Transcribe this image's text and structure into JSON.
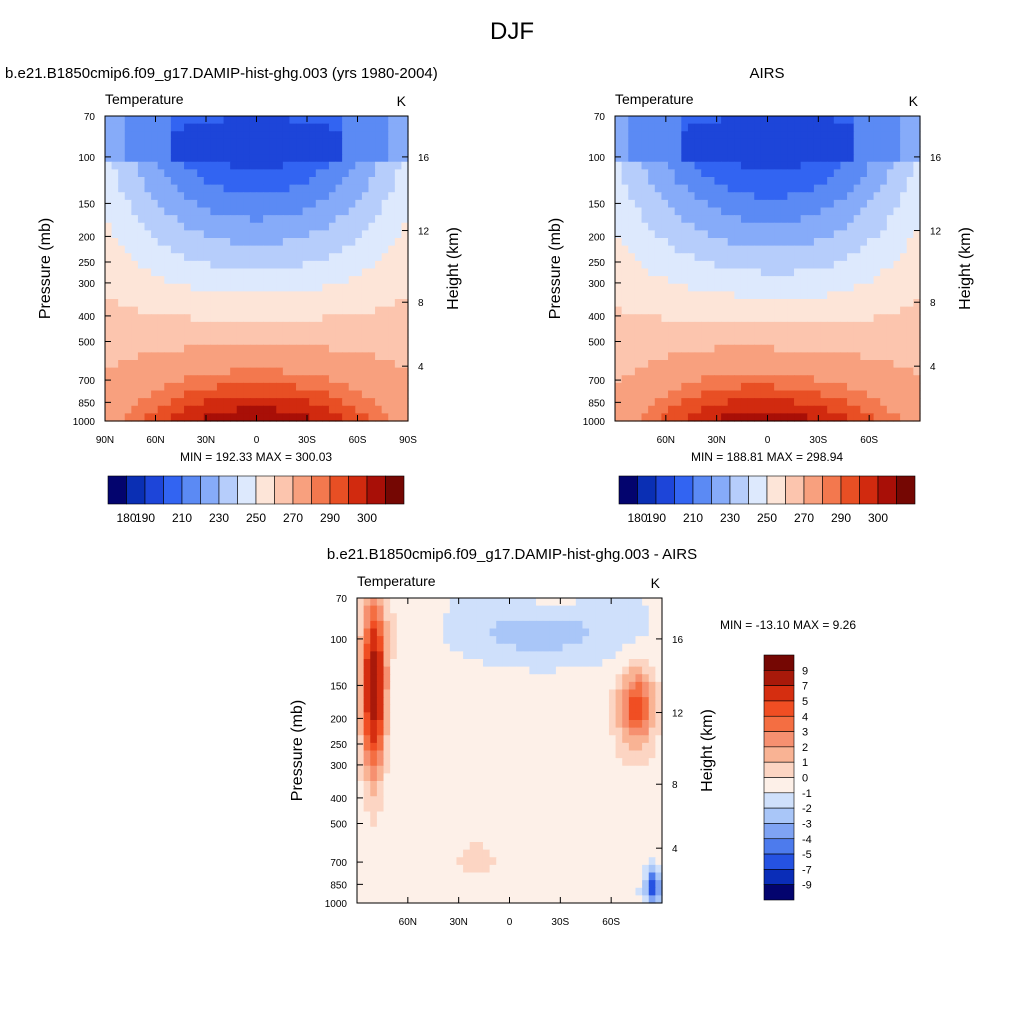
{
  "page": {
    "title": "DJF"
  },
  "chart_data": [
    {
      "type": "heatmap",
      "id": "model",
      "title": "b.e21.B1850cmip6.f09_g17.DAMIP-hist-ghg.003 (yrs 1980-2004)",
      "left_label": "Temperature",
      "unit_label": "K",
      "ylabel": "Pressure (mb)",
      "y2label": "Height (km)",
      "xticks": [
        "90N",
        "60N",
        "30N",
        "0",
        "30S",
        "60S",
        "90S"
      ],
      "yticks": [
        "70",
        "100",
        "150",
        "200",
        "250",
        "300",
        "400",
        "500",
        "700",
        "850",
        "1000"
      ],
      "y2ticks": [
        "16",
        "12",
        "8",
        "4"
      ],
      "xlim": [
        90,
        -90
      ],
      "ylim": [
        1000,
        70
      ],
      "stats": "MIN = 192.33  MAX = 300.03",
      "min": 192.33,
      "max": 300.03,
      "colorbar_ticks": [
        "180",
        "190",
        "210",
        "230",
        "250",
        "270",
        "290",
        "300"
      ],
      "colorbar_colors": [
        "#03046e",
        "#0a2fb4",
        "#1d45d9",
        "#3264f2",
        "#5b8af4",
        "#86abf9",
        "#b6cdfb",
        "#dde9fd",
        "#fde5d8",
        "#fcc5ae",
        "#f8a07e",
        "#f3784e",
        "#e84f24",
        "#d12a0f",
        "#a80f07",
        "#750703"
      ]
    },
    {
      "type": "heatmap",
      "id": "obs",
      "title": "AIRS",
      "left_label": "Temperature",
      "unit_label": "K",
      "ylabel": "Pressure (mb)",
      "y2label": "Height (km)",
      "xticks": [
        "60N",
        "30N",
        "0",
        "30S",
        "60S"
      ],
      "yticks": [
        "70",
        "100",
        "150",
        "200",
        "250",
        "300",
        "400",
        "500",
        "700",
        "850",
        "1000"
      ],
      "y2ticks": [
        "16",
        "12",
        "8",
        "4"
      ],
      "xlim": [
        90,
        -90
      ],
      "ylim": [
        1000,
        70
      ],
      "stats": "MIN = 188.81  MAX = 298.94",
      "min": 188.81,
      "max": 298.94,
      "colorbar_ticks": [
        "180",
        "190",
        "210",
        "230",
        "250",
        "270",
        "290",
        "300"
      ],
      "colorbar_colors": [
        "#03046e",
        "#0a2fb4",
        "#1d45d9",
        "#3264f2",
        "#5b8af4",
        "#86abf9",
        "#b6cdfb",
        "#dde9fd",
        "#fde5d8",
        "#fcc5ae",
        "#f8a07e",
        "#f3784e",
        "#e84f24",
        "#d12a0f",
        "#a80f07",
        "#750703"
      ]
    },
    {
      "type": "heatmap",
      "id": "diff",
      "title": "b.e21.B1850cmip6.f09_g17.DAMIP-hist-ghg.003 - AIRS",
      "left_label": "Temperature",
      "unit_label": "K",
      "ylabel": "Pressure (mb)",
      "y2label": "Height (km)",
      "xticks": [
        "60N",
        "30N",
        "0",
        "30S",
        "60S"
      ],
      "yticks": [
        "70",
        "100",
        "150",
        "200",
        "250",
        "300",
        "400",
        "500",
        "700",
        "850",
        "1000"
      ],
      "y2ticks": [
        "16",
        "12",
        "8",
        "4"
      ],
      "xlim": [
        90,
        -90
      ],
      "ylim": [
        1000,
        70
      ],
      "stats": "MIN = -13.10  MAX =   9.26",
      "min": -13.1,
      "max": 9.26,
      "colorbar_ticks": [
        "9",
        "7",
        "5",
        "4",
        "3",
        "2",
        "1",
        "0",
        "-1",
        "-2",
        "-3",
        "-4",
        "-5",
        "-7",
        "-9"
      ],
      "colorbar_colors": [
        "#750703",
        "#a8190a",
        "#d52e10",
        "#f04e23",
        "#f46e42",
        "#f69070",
        "#f9b394",
        "#fcd5c3",
        "#fdf0e8",
        "#cfe0fb",
        "#a9c6f8",
        "#7fa3f3",
        "#4d7bed",
        "#2552e2",
        "#0a2db8",
        "#03046e"
      ]
    }
  ]
}
